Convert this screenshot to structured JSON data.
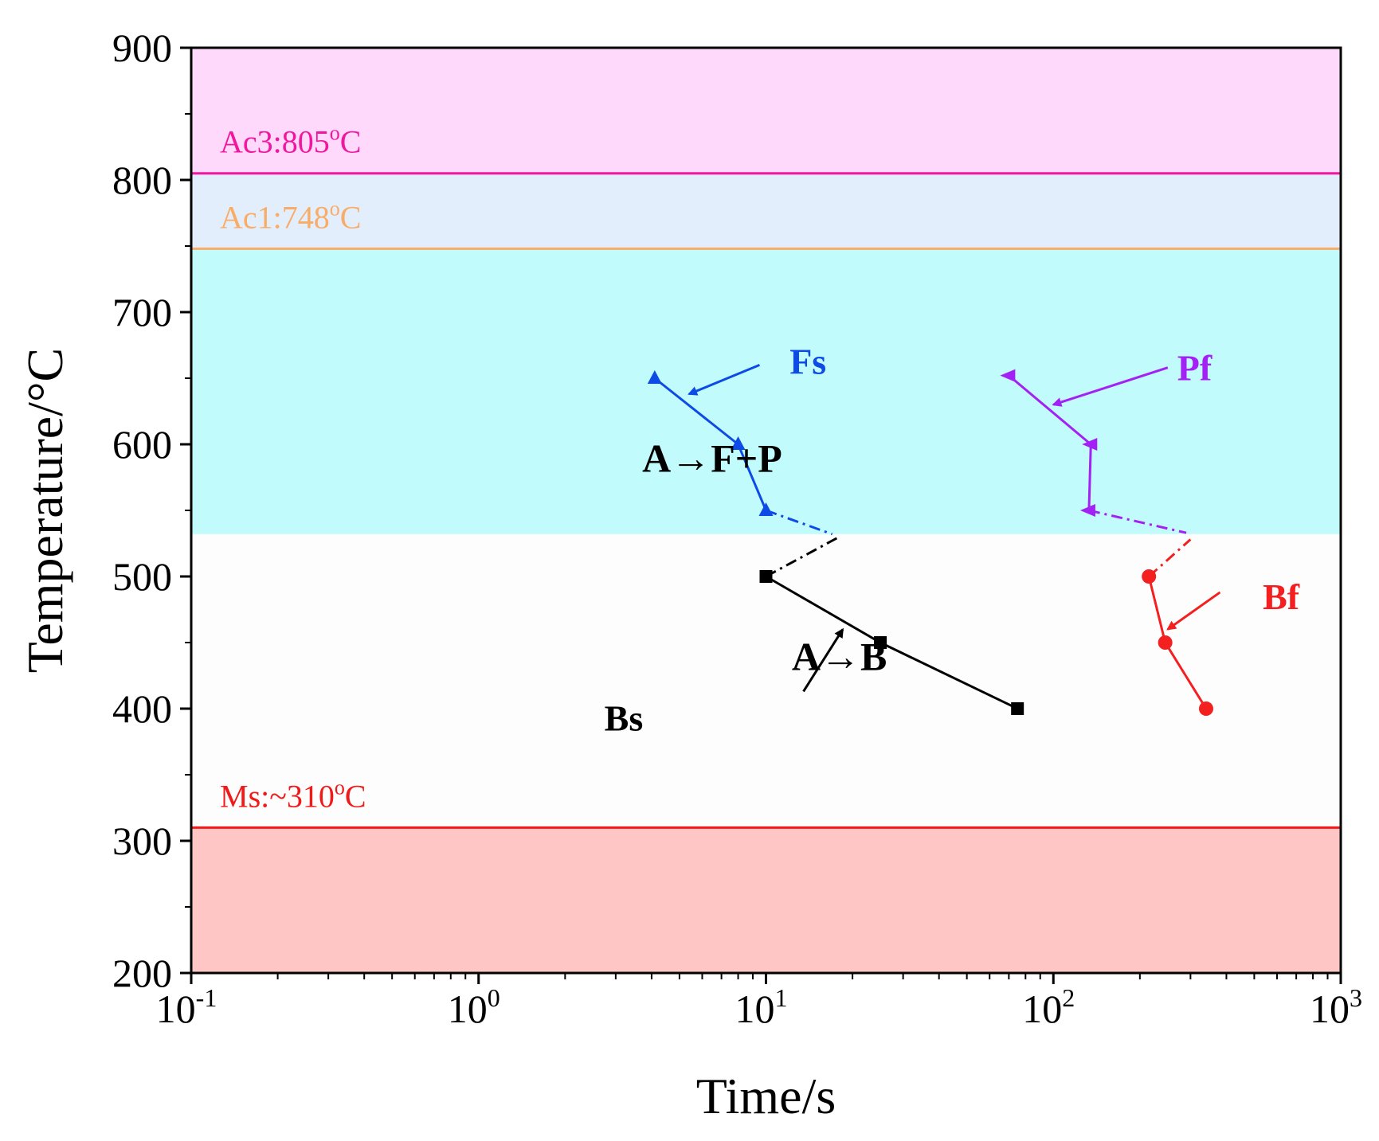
{
  "chart_data": {
    "type": "line",
    "title": "",
    "xlabel": "Time/s",
    "ylabel": "Temperature/°C",
    "xscale": "log",
    "xlim": [
      0.1,
      1000
    ],
    "ylim": [
      200,
      900
    ],
    "xticks": [
      {
        "value": 0.1,
        "base": "10",
        "exp": "-1"
      },
      {
        "value": 1,
        "base": "10",
        "exp": "0"
      },
      {
        "value": 10,
        "base": "10",
        "exp": "1"
      },
      {
        "value": 100,
        "base": "10",
        "exp": "2"
      },
      {
        "value": 1000,
        "base": "10",
        "exp": "3"
      }
    ],
    "yticks": [
      "200",
      "300",
      "400",
      "500",
      "600",
      "700",
      "800",
      "900"
    ],
    "regions": [
      {
        "name": "above-ac3",
        "y0": 805,
        "y1": 900,
        "color": "#ffd9fb"
      },
      {
        "name": "ac1-ac3",
        "y0": 748,
        "y1": 805,
        "color": "#e3eefd"
      },
      {
        "name": "ferrite-pearlite",
        "y0": 532,
        "y1": 748,
        "color": "#c2fbfc"
      },
      {
        "name": "bainite",
        "y0": 310,
        "y1": 532,
        "color": "#fefdfd"
      },
      {
        "name": "martensite",
        "y0": 200,
        "y1": 310,
        "color": "#fec6c5"
      }
    ],
    "critical_lines": [
      {
        "name": "ac3",
        "prefix": "Ac3:805",
        "sup": "o",
        "suffix": "C",
        "value": 805,
        "color": "#f0169e"
      },
      {
        "name": "ac1",
        "prefix": "Ac1:748",
        "sup": "o",
        "suffix": "C",
        "value": 748,
        "color": "#f9ac67"
      },
      {
        "name": "ms",
        "prefix": "Ms:~310",
        "sup": "o",
        "suffix": "C",
        "value": 310,
        "color": "#f21919"
      }
    ],
    "series": [
      {
        "name": "Fs",
        "color": "#0d4ae6",
        "marker": "triangle-up",
        "points": [
          [
            4.1,
            650
          ],
          [
            8.0,
            600
          ],
          [
            10.0,
            550
          ]
        ],
        "dashed_to": [
          17.0,
          532
        ]
      },
      {
        "name": "Pf",
        "color": "#a321f4",
        "marker": "triangle-left",
        "points": [
          [
            70,
            652
          ],
          [
            135,
            600
          ],
          [
            133,
            550
          ]
        ],
        "dashed_to": [
          290,
          533
        ]
      },
      {
        "name": "Bs",
        "color": "#000000",
        "marker": "square",
        "points": [
          [
            10.0,
            500
          ],
          [
            25,
            450
          ],
          [
            75,
            400
          ]
        ],
        "dashed_to": [
          18,
          530
        ]
      },
      {
        "name": "Bf",
        "color": "#f42020",
        "marker": "circle",
        "points": [
          [
            215,
            500
          ],
          [
            245,
            450
          ],
          [
            340,
            400
          ]
        ],
        "dashed_to": [
          300,
          528
        ]
      }
    ],
    "annotations": [
      {
        "name": "fs",
        "text": "Fs",
        "color": "#0d4ae6",
        "x": 14,
        "y": 663,
        "arrow_from": [
          9.5,
          660
        ],
        "arrow_to": [
          5.4,
          638
        ]
      },
      {
        "name": "pf",
        "text": "Pf",
        "color": "#a321f4",
        "x": 310,
        "y": 658,
        "arrow_from": [
          250,
          658
        ],
        "arrow_to": [
          100,
          630
        ]
      },
      {
        "name": "bs",
        "text": "Bs",
        "color": "#000000",
        "x": 3.2,
        "y": 393,
        "arrow_from": [
          13.5,
          413
        ],
        "arrow_to": [
          18.5,
          460
        ]
      },
      {
        "name": "bf",
        "text": "Bf",
        "color": "#f42020",
        "x": 620,
        "y": 485,
        "arrow_from": [
          380,
          488
        ],
        "arrow_to": [
          250,
          460
        ]
      }
    ],
    "region_labels": [
      {
        "name": "ferrite-pearlite",
        "text": "A→F+P",
        "x": 6.5,
        "y": 590
      },
      {
        "name": "bainite",
        "text": "A→B",
        "x": 18,
        "y": 440
      }
    ]
  }
}
